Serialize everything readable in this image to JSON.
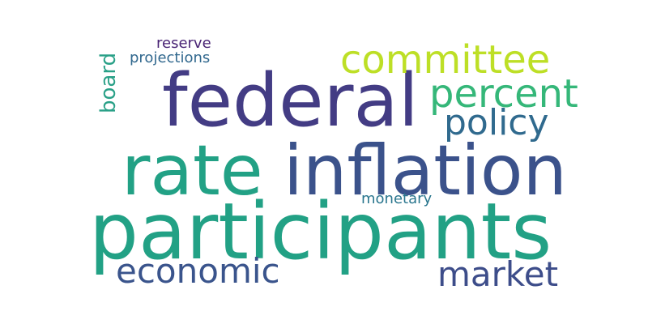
{
  "words": {
    "participants": {
      "text": "participants",
      "color": "#22a185"
    },
    "federal": {
      "text": "federal",
      "color": "#433c84"
    },
    "rate": {
      "text": "rate",
      "color": "#22a185"
    },
    "inflation": {
      "text": "inflation",
      "color": "#3b528b"
    },
    "committee": {
      "text": "committee",
      "color": "#bddf26"
    },
    "percent": {
      "text": "percent",
      "color": "#35b779"
    },
    "policy": {
      "text": "policy",
      "color": "#306a8e"
    },
    "economic": {
      "text": "economic",
      "color": "#3a548c"
    },
    "market": {
      "text": "market",
      "color": "#3d4d8a"
    },
    "board": {
      "text": "board",
      "color": "#29a087"
    },
    "projections": {
      "text": "projections",
      "color": "#31688e"
    },
    "reserve": {
      "text": "reserve",
      "color": "#482374"
    },
    "monetary": {
      "text": "monetary",
      "color": "#2a768e"
    }
  }
}
